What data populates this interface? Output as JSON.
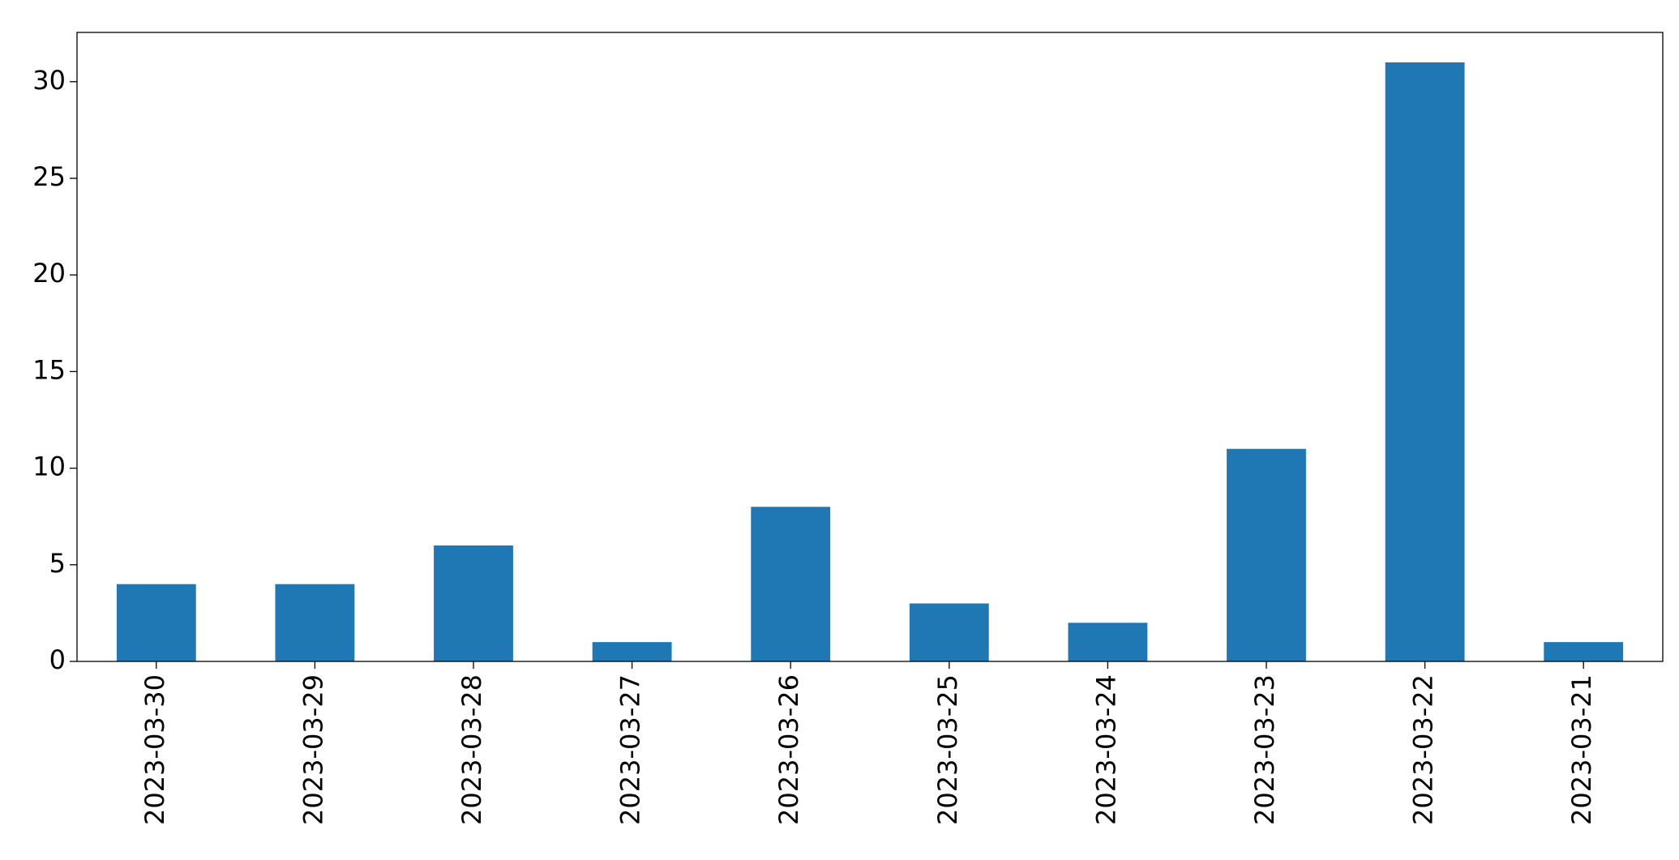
{
  "chart_data": {
    "type": "bar",
    "categories": [
      "2023-03-30",
      "2023-03-29",
      "2023-03-28",
      "2023-03-27",
      "2023-03-26",
      "2023-03-25",
      "2023-03-24",
      "2023-03-23",
      "2023-03-22",
      "2023-03-21"
    ],
    "values": [
      4,
      4,
      6,
      1,
      8,
      3,
      2,
      11,
      31,
      1
    ],
    "color": "#1f77b4",
    "ylim": [
      0,
      32.55
    ],
    "yticks": [
      0,
      5,
      10,
      15,
      20,
      25,
      30
    ],
    "grid": false
  }
}
